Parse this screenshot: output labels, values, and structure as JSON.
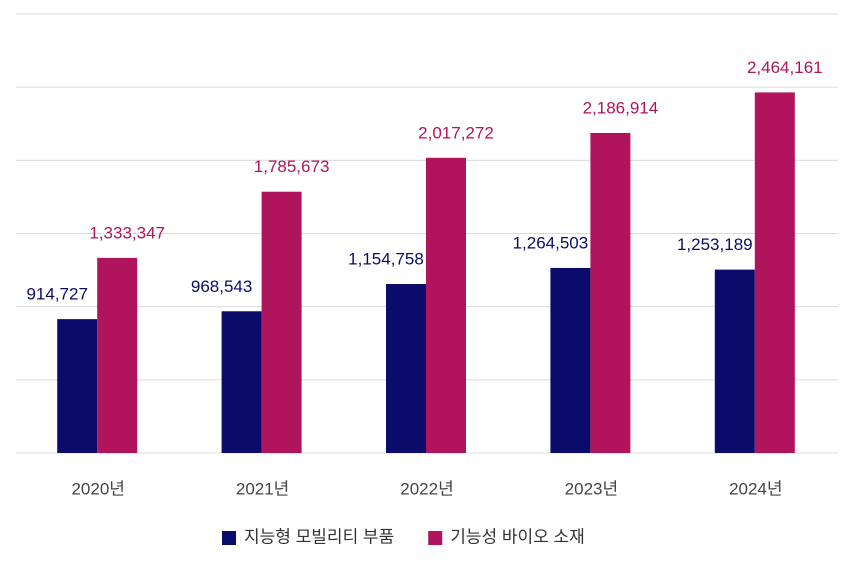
{
  "chart_data": {
    "type": "bar",
    "categories": [
      "2020년",
      "2021년",
      "2022년",
      "2023년",
      "2024년"
    ],
    "series": [
      {
        "name": "지능형 모빌리티 부품",
        "color": "#0b0b6b",
        "values": [
          914727,
          968543,
          1154758,
          1264503,
          1253189
        ],
        "value_labels": [
          "914,727",
          "968,543",
          "1,154,758",
          "1,264,503",
          "1,253,189"
        ]
      },
      {
        "name": "기능성 바이오 소재",
        "color": "#b0145c",
        "values": [
          1333347,
          1785673,
          2017272,
          2186914,
          2464161
        ],
        "value_labels": [
          "1,333,347",
          "1,785,673",
          "2,017,272",
          "2,186,914",
          "2,464,161"
        ]
      }
    ],
    "ylim": [
      0,
      3000000
    ],
    "yticks": [
      0,
      500000,
      1000000,
      1500000,
      2000000,
      2500000,
      3000000
    ],
    "grid": true
  }
}
